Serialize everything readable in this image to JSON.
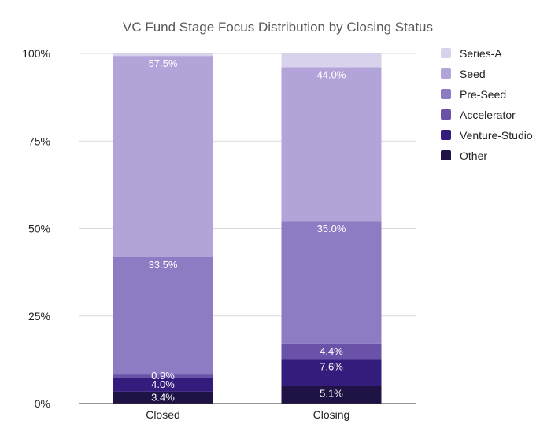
{
  "chart_data": {
    "type": "bar",
    "stacked": true,
    "title": "VC Fund Stage Focus Distribution by Closing Status",
    "xlabel": "",
    "ylabel": "",
    "ylim": [
      0,
      100
    ],
    "y_ticks": [
      "0%",
      "25%",
      "50%",
      "75%",
      "100%"
    ],
    "grid": true,
    "legend_position": "right",
    "categories": [
      "Closed",
      "Closing"
    ],
    "series": [
      {
        "name": "Other",
        "color": "#1f1245",
        "values": [
          3.4,
          5.1
        ],
        "labels": [
          "3.4%",
          "5.1%"
        ]
      },
      {
        "name": "Venture-Studio",
        "color": "#331c7c",
        "values": [
          4.0,
          7.6
        ],
        "labels": [
          "4.0%",
          "7.6%"
        ]
      },
      {
        "name": "Accelerator",
        "color": "#6a52a8",
        "values": [
          0.9,
          4.4
        ],
        "labels": [
          "0.9%",
          "4.4%"
        ]
      },
      {
        "name": "Pre-Seed",
        "color": "#8d7cc4",
        "values": [
          33.5,
          35.0
        ],
        "labels": [
          "33.5%",
          "35.0%"
        ]
      },
      {
        "name": "Seed",
        "color": "#b2a4d8",
        "values": [
          57.5,
          44.0
        ],
        "labels": [
          "57.5%",
          "44.0%"
        ]
      },
      {
        "name": "Series-A",
        "color": "#d9d2ec",
        "values": [
          0.7,
          3.9
        ],
        "labels": [
          "",
          ""
        ]
      }
    ],
    "legend_order": [
      "Series-A",
      "Seed",
      "Pre-Seed",
      "Accelerator",
      "Venture-Studio",
      "Other"
    ]
  }
}
